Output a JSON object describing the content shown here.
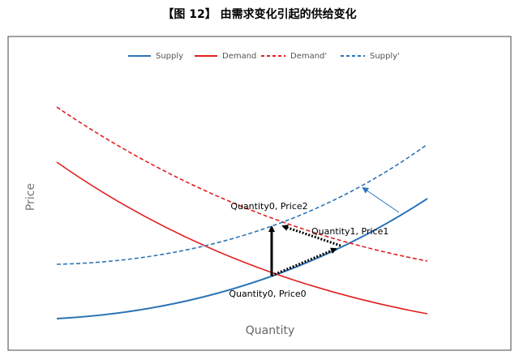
{
  "title": "【图 12】 由需求变化引起的供给变化",
  "legend": [
    "Supply",
    "Demand",
    "Demand'",
    "Supply'"
  ],
  "axes": {
    "y_label": "Price",
    "x_label": "Quantity"
  },
  "annotations": [
    "Quantity0, Price2",
    "Quantity1, Price1",
    "Quantity0, Price0"
  ]
}
